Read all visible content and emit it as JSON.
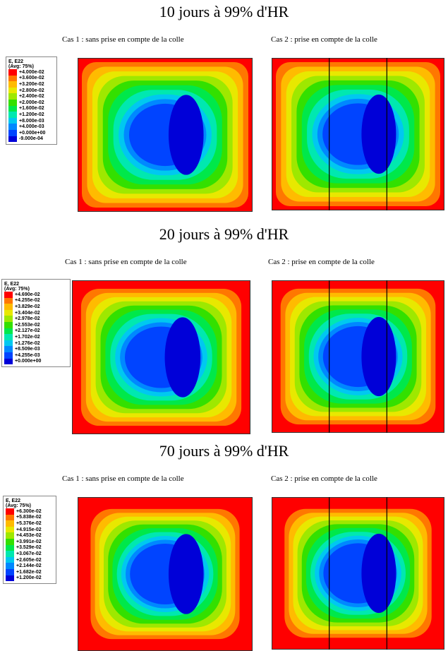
{
  "panels": [
    {
      "title": "10 jours à 99% d'HR",
      "case1": "Cas 1 : sans prise en compte de la colle",
      "case2": "Cas 2 : prise en compte de la colle",
      "legend": {
        "header": "E, E22",
        "subheader": "(Avg: 75%)",
        "labels": [
          "+4.000e-02",
          "+3.600e-02",
          "+3.200e-02",
          "+2.800e-02",
          "+2.400e-02",
          "+2.000e-02",
          "+1.600e-02",
          "+1.200e-02",
          "+8.000e-03",
          "+4.000e-03",
          "+0.000e+00",
          "-9.000e-04"
        ]
      }
    },
    {
      "title": "20 jours à 99% d'HR",
      "case1": "Cas 1 : sans prise en compte de la colle",
      "case2": "Cas 2 : prise en compte de la colle",
      "legend": {
        "header": "E, E22",
        "subheader": "(Avg: 75%)",
        "labels": [
          "+4.690e-02",
          "+4.255e-02",
          "+3.829e-02",
          "+3.404e-02",
          "+2.978e-02",
          "+2.553e-02",
          "+2.127e-02",
          "+1.702e-02",
          "+1.276e-02",
          "+8.509e-03",
          "+4.255e-03",
          "+0.000e+00"
        ]
      }
    },
    {
      "title": "70 jours à 99% d'HR",
      "case1": "Cas 1 : sans prise en compte de la colle",
      "case2": "Cas 2 : prise en compte de la colle",
      "legend": {
        "header": "E, E22",
        "subheader": "(Avg: 75%)",
        "labels": [
          "+6.300e-02",
          "+5.838e-02",
          "+5.376e-02",
          "+4.915e-02",
          "+4.453e-02",
          "+3.991e-02",
          "+3.529e-02",
          "+3.067e-02",
          "+2.605e-02",
          "+2.144e-02",
          "+1.682e-02",
          "+1.200e-02"
        ]
      }
    }
  ]
}
